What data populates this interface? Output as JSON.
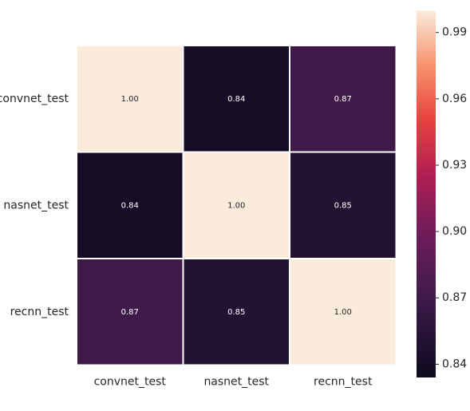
{
  "chart_data": {
    "type": "heatmap",
    "title": "",
    "xlabel": "",
    "ylabel": "",
    "rows": [
      "convnet_test",
      "nasnet_test",
      "recnn_test"
    ],
    "columns": [
      "convnet_test",
      "nasnet_test",
      "recnn_test"
    ],
    "values": [
      [
        1.0,
        0.84,
        0.87
      ],
      [
        0.84,
        1.0,
        0.85
      ],
      [
        0.87,
        0.85,
        1.0
      ]
    ],
    "value_labels": [
      [
        "1.00",
        "0.84",
        "0.87"
      ],
      [
        "0.84",
        "1.00",
        "0.85"
      ],
      [
        "0.87",
        "0.85",
        "1.00"
      ]
    ],
    "colormap": "rocket",
    "colorbar": {
      "range": [
        0.834,
        1.0
      ],
      "ticks": [
        0.84,
        0.87,
        0.9,
        0.93,
        0.96,
        0.99
      ],
      "tick_labels": [
        "0.84",
        "0.87",
        "0.90",
        "0.93",
        "0.96",
        "0.99"
      ]
    },
    "grid": false,
    "cell_border_color": "#ffffff",
    "text_color_dark_cell": "#ffffff",
    "text_color_light_cell": "#262626"
  }
}
